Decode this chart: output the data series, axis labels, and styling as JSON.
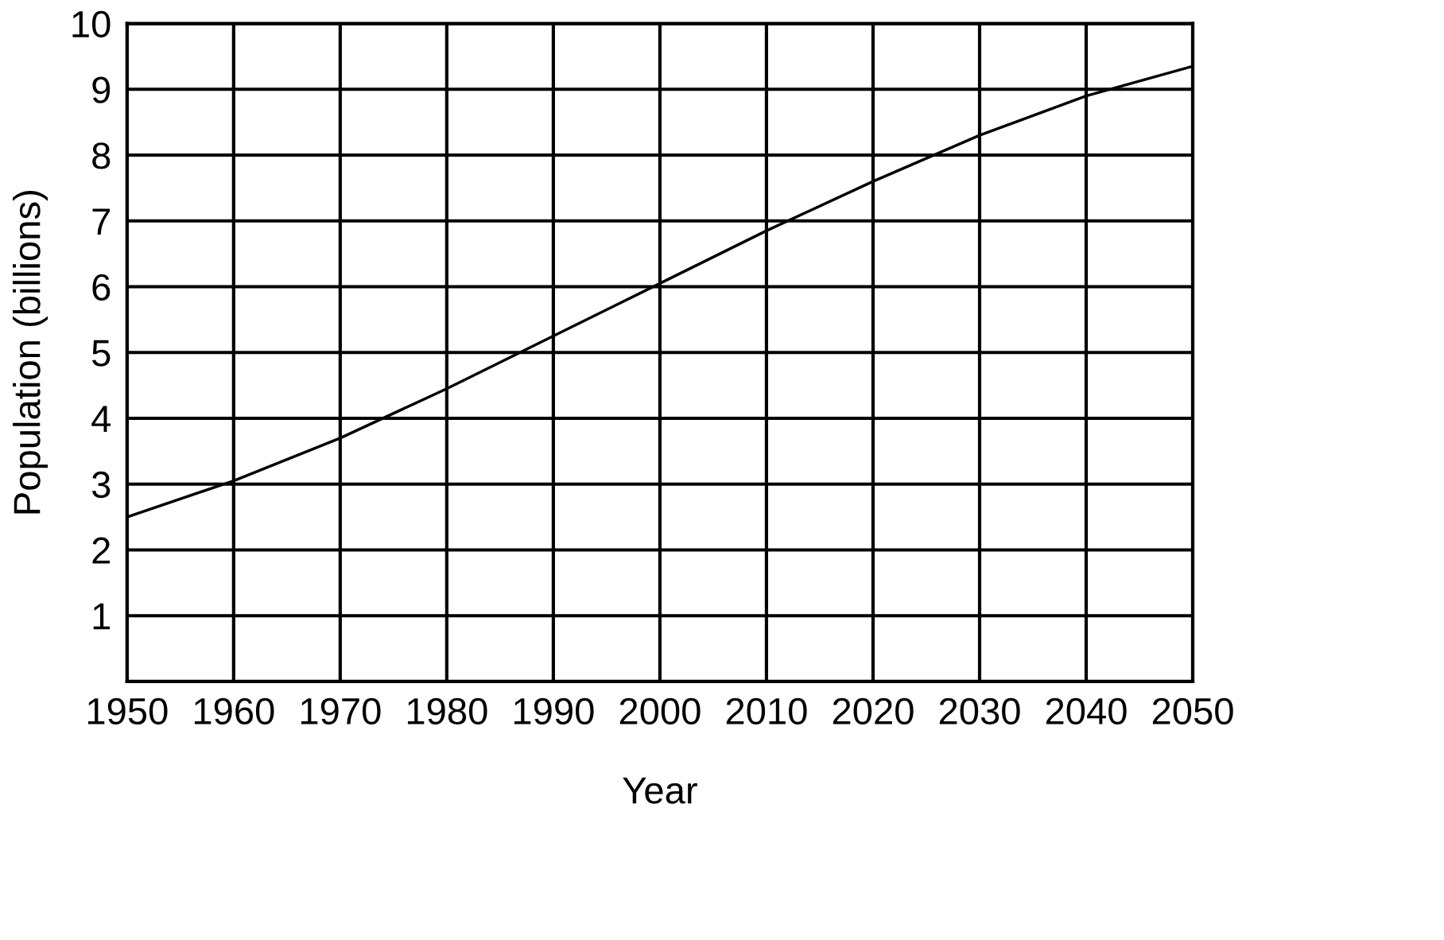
{
  "chart_data": {
    "type": "line",
    "xlabel": "Year",
    "ylabel": "Population (billions)",
    "x": [
      1950,
      1960,
      1970,
      1980,
      1990,
      2000,
      2010,
      2020,
      2030,
      2040,
      2050
    ],
    "series": [
      {
        "color": "#000000",
        "values": [
          2.5,
          3.05,
          3.7,
          4.45,
          5.25,
          6.05,
          6.85,
          7.6,
          8.3,
          8.9,
          9.35
        ]
      }
    ],
    "xlim": [
      1950,
      2050
    ],
    "xticks": [
      1950,
      1960,
      1970,
      1980,
      1990,
      2000,
      2010,
      2020,
      2030,
      2040,
      2050
    ],
    "ylim": [
      0,
      10
    ],
    "yticks": [
      1,
      2,
      3,
      4,
      5,
      6,
      7,
      8,
      9,
      10
    ],
    "grid": true
  }
}
